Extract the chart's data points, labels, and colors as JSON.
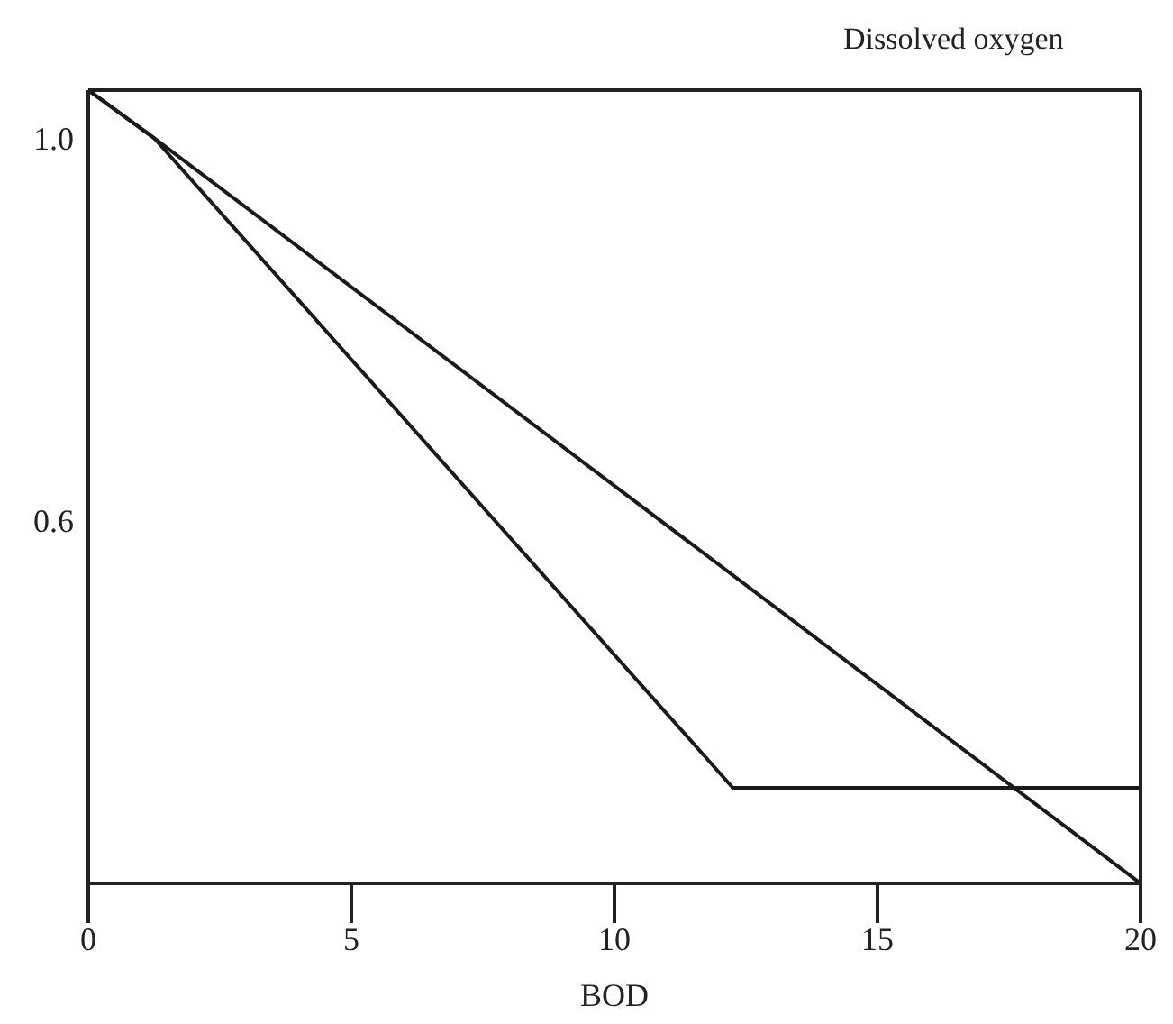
{
  "chart_data": {
    "type": "line",
    "ylabel": "Dissolved oxygen",
    "xlabel": "BOD",
    "xlim": [
      0,
      20
    ],
    "xticks": [
      0,
      5,
      10,
      15,
      20
    ],
    "ylim": [
      0.22,
      1.05
    ],
    "yticks": [
      {
        "value": 1.0,
        "label": "1.0"
      },
      0.6
    ],
    "grid": false,
    "legend": false,
    "marker": "none",
    "line_style": "solid",
    "series": [
      {
        "color": "#1a1a1a",
        "x": [
          0,
          1.25,
          12.25,
          20
        ],
        "values": [
          1.05,
          1.0,
          0.32,
          0.32
        ]
      },
      {
        "color": "#1a1a1a",
        "x": [
          0,
          1.25,
          20
        ],
        "values": [
          1.05,
          1.0,
          0.22
        ]
      }
    ]
  }
}
